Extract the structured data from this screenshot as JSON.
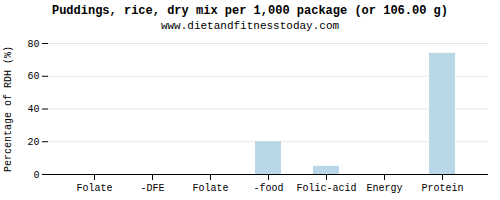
{
  "chart_data": {
    "type": "bar",
    "title": "Puddings, rice, dry mix per 1,000 package (or 106.00 g)",
    "subtitle": "www.dietandfitnesstoday.com",
    "categories": [
      "Folate",
      "-DFE",
      "Folate",
      "-food",
      "Folic-acid",
      "Energy",
      "Protein"
    ],
    "values": [
      0,
      0,
      0,
      20,
      5,
      0,
      74
    ],
    "color": "#b8d8e8",
    "ylabel": "Percentage of RDH (%)",
    "ylim": [
      0,
      80
    ],
    "yticks": [
      0,
      20,
      40,
      60,
      80
    ],
    "grid": true
  }
}
